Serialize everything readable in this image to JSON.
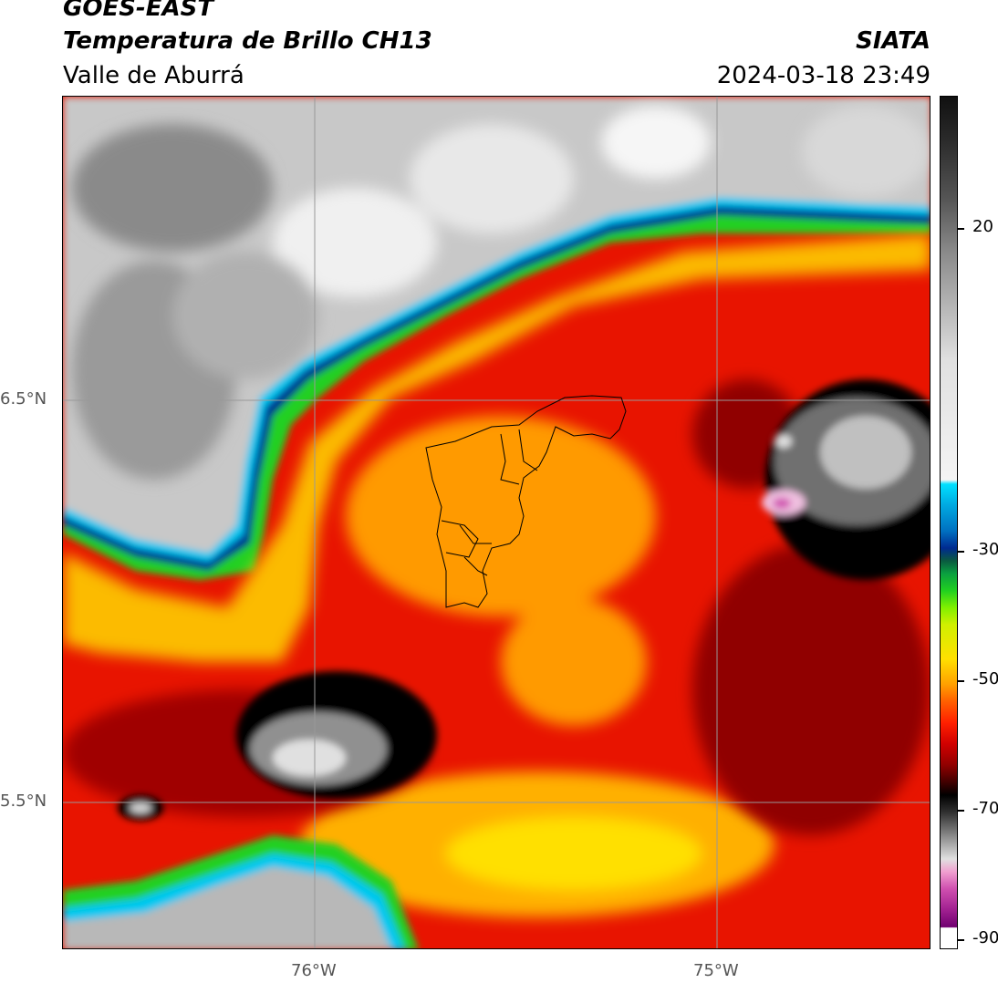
{
  "header": {
    "satellite": "GOES-EAST",
    "product": "Temperatura de Brillo CH13",
    "region": "Valle de Aburrá",
    "brand": "SIATA",
    "datetime": "2024-03-18 23:49"
  },
  "axes": {
    "lat_ticks": [
      "6.5°N",
      "5.5°N"
    ],
    "lon_ticks": [
      "76°W",
      "75°W"
    ]
  },
  "colorbar": {
    "tick_labels": [
      "20",
      "-30",
      "-50",
      "-70",
      "-90"
    ],
    "colors": {
      "warm": "#f4f4f4",
      "cyan": "#00e0ff",
      "blue": "#002a90",
      "green": "#20d020",
      "yellow": "#ffe000",
      "orange": "#ff8000",
      "red": "#ff2000",
      "darkred": "#900000",
      "black": "#000000",
      "magenta": "#d050b0"
    }
  }
}
